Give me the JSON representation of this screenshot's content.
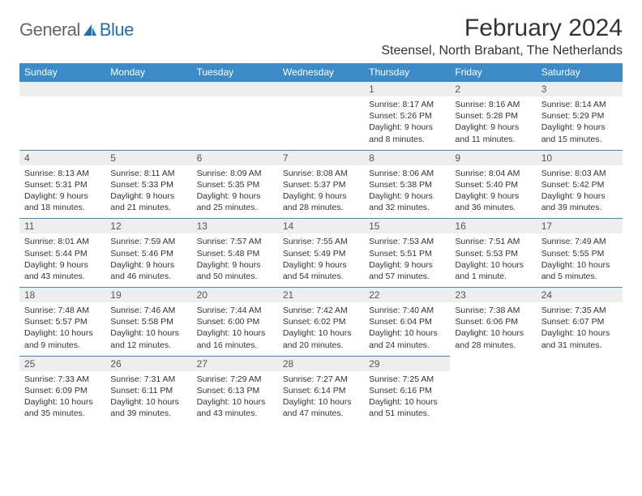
{
  "logo": {
    "general": "General",
    "blue": "Blue",
    "sail_color": "#1f6fb2"
  },
  "title": "February 2024",
  "location": "Steensel, North Brabant, The Netherlands",
  "colors": {
    "header_bg": "#3b8bc9",
    "header_text": "#ffffff",
    "daynum_bg": "#eeeeee",
    "row_border": "#3b8bc9",
    "body_text": "#333333"
  },
  "fonts": {
    "title_size": 30,
    "location_size": 16,
    "th_size": 12,
    "daynum_size": 12,
    "body_size": 10.5
  },
  "weekdays": [
    "Sunday",
    "Monday",
    "Tuesday",
    "Wednesday",
    "Thursday",
    "Friday",
    "Saturday"
  ],
  "first_weekday_index": 4,
  "days": [
    {
      "n": 1,
      "sunrise": "8:17 AM",
      "sunset": "5:26 PM",
      "daylight": "9 hours and 8 minutes."
    },
    {
      "n": 2,
      "sunrise": "8:16 AM",
      "sunset": "5:28 PM",
      "daylight": "9 hours and 11 minutes."
    },
    {
      "n": 3,
      "sunrise": "8:14 AM",
      "sunset": "5:29 PM",
      "daylight": "9 hours and 15 minutes."
    },
    {
      "n": 4,
      "sunrise": "8:13 AM",
      "sunset": "5:31 PM",
      "daylight": "9 hours and 18 minutes."
    },
    {
      "n": 5,
      "sunrise": "8:11 AM",
      "sunset": "5:33 PM",
      "daylight": "9 hours and 21 minutes."
    },
    {
      "n": 6,
      "sunrise": "8:09 AM",
      "sunset": "5:35 PM",
      "daylight": "9 hours and 25 minutes."
    },
    {
      "n": 7,
      "sunrise": "8:08 AM",
      "sunset": "5:37 PM",
      "daylight": "9 hours and 28 minutes."
    },
    {
      "n": 8,
      "sunrise": "8:06 AM",
      "sunset": "5:38 PM",
      "daylight": "9 hours and 32 minutes."
    },
    {
      "n": 9,
      "sunrise": "8:04 AM",
      "sunset": "5:40 PM",
      "daylight": "9 hours and 36 minutes."
    },
    {
      "n": 10,
      "sunrise": "8:03 AM",
      "sunset": "5:42 PM",
      "daylight": "9 hours and 39 minutes."
    },
    {
      "n": 11,
      "sunrise": "8:01 AM",
      "sunset": "5:44 PM",
      "daylight": "9 hours and 43 minutes."
    },
    {
      "n": 12,
      "sunrise": "7:59 AM",
      "sunset": "5:46 PM",
      "daylight": "9 hours and 46 minutes."
    },
    {
      "n": 13,
      "sunrise": "7:57 AM",
      "sunset": "5:48 PM",
      "daylight": "9 hours and 50 minutes."
    },
    {
      "n": 14,
      "sunrise": "7:55 AM",
      "sunset": "5:49 PM",
      "daylight": "9 hours and 54 minutes."
    },
    {
      "n": 15,
      "sunrise": "7:53 AM",
      "sunset": "5:51 PM",
      "daylight": "9 hours and 57 minutes."
    },
    {
      "n": 16,
      "sunrise": "7:51 AM",
      "sunset": "5:53 PM",
      "daylight": "10 hours and 1 minute."
    },
    {
      "n": 17,
      "sunrise": "7:49 AM",
      "sunset": "5:55 PM",
      "daylight": "10 hours and 5 minutes."
    },
    {
      "n": 18,
      "sunrise": "7:48 AM",
      "sunset": "5:57 PM",
      "daylight": "10 hours and 9 minutes."
    },
    {
      "n": 19,
      "sunrise": "7:46 AM",
      "sunset": "5:58 PM",
      "daylight": "10 hours and 12 minutes."
    },
    {
      "n": 20,
      "sunrise": "7:44 AM",
      "sunset": "6:00 PM",
      "daylight": "10 hours and 16 minutes."
    },
    {
      "n": 21,
      "sunrise": "7:42 AM",
      "sunset": "6:02 PM",
      "daylight": "10 hours and 20 minutes."
    },
    {
      "n": 22,
      "sunrise": "7:40 AM",
      "sunset": "6:04 PM",
      "daylight": "10 hours and 24 minutes."
    },
    {
      "n": 23,
      "sunrise": "7:38 AM",
      "sunset": "6:06 PM",
      "daylight": "10 hours and 28 minutes."
    },
    {
      "n": 24,
      "sunrise": "7:35 AM",
      "sunset": "6:07 PM",
      "daylight": "10 hours and 31 minutes."
    },
    {
      "n": 25,
      "sunrise": "7:33 AM",
      "sunset": "6:09 PM",
      "daylight": "10 hours and 35 minutes."
    },
    {
      "n": 26,
      "sunrise": "7:31 AM",
      "sunset": "6:11 PM",
      "daylight": "10 hours and 39 minutes."
    },
    {
      "n": 27,
      "sunrise": "7:29 AM",
      "sunset": "6:13 PM",
      "daylight": "10 hours and 43 minutes."
    },
    {
      "n": 28,
      "sunrise": "7:27 AM",
      "sunset": "6:14 PM",
      "daylight": "10 hours and 47 minutes."
    },
    {
      "n": 29,
      "sunrise": "7:25 AM",
      "sunset": "6:16 PM",
      "daylight": "10 hours and 51 minutes."
    }
  ],
  "labels": {
    "sunrise": "Sunrise:",
    "sunset": "Sunset:",
    "daylight": "Daylight:"
  }
}
